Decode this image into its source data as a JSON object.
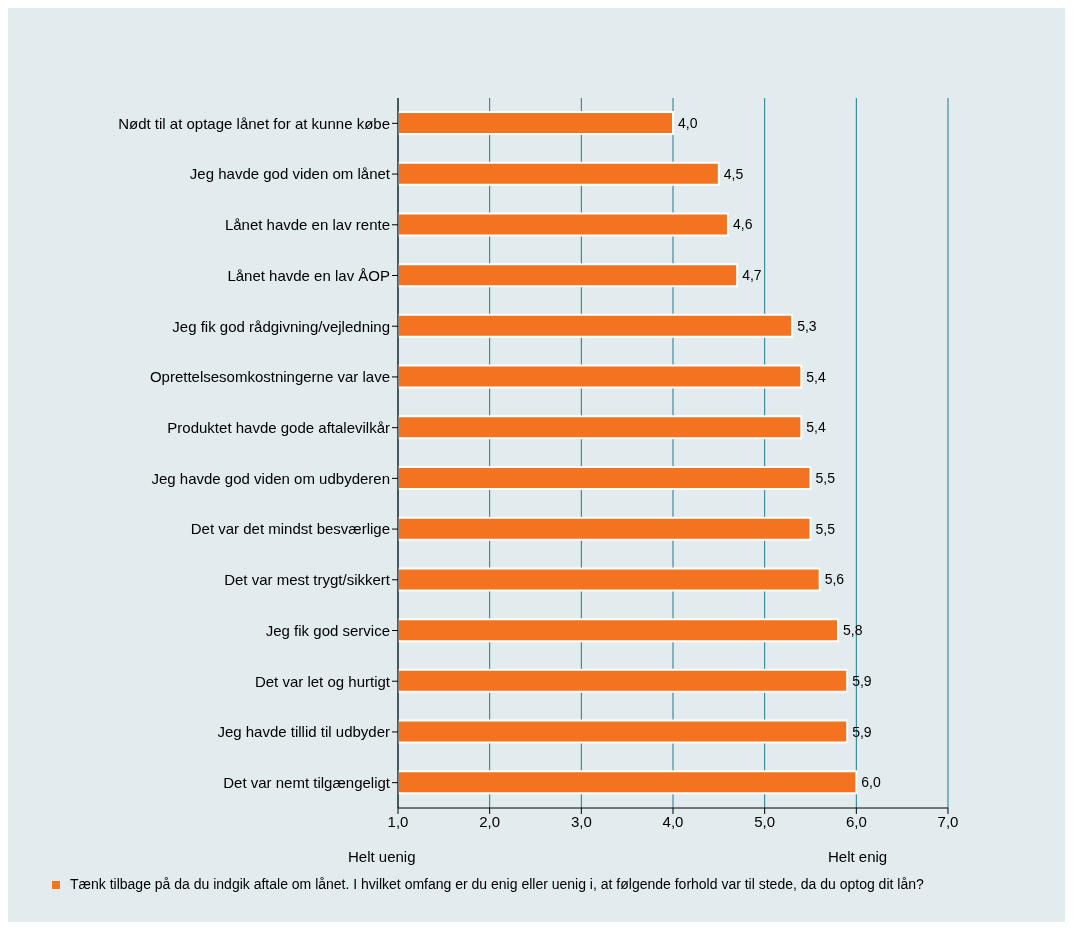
{
  "chart_data": {
    "type": "bar",
    "orientation": "horizontal",
    "categories": [
      "Nødt til at optage lånet for at kunne købe",
      "Jeg havde god viden om lånet",
      "Lånet havde en lav rente",
      "Lånet havde en lav ÅOP",
      "Jeg fik god rådgivning/vejledning",
      "Oprettelsesomkostningerne var lave",
      "Produktet havde gode aftalevilkår",
      "Jeg havde god viden om udbyderen",
      "Det var det mindst besværlige",
      "Det var mest trygt/sikkert",
      "Jeg fik god service",
      "Det var let og hurtigt",
      "Jeg havde tillid til udbyder",
      "Det var nemt tilgængeligt"
    ],
    "series": [
      {
        "name": "Tænk tilbage på da du indgik aftale om lånet. I hvilket omfang er du enig eller uenig i, at følgende forhold var til stede, da du optog dit lån?",
        "color": "#f37321",
        "values": [
          4.0,
          4.5,
          4.6,
          4.7,
          5.3,
          5.4,
          5.4,
          5.5,
          5.5,
          5.6,
          5.8,
          5.9,
          5.9,
          6.0
        ],
        "value_labels": [
          "4,0",
          "4,5",
          "4,6",
          "4,7",
          "5,3",
          "5,4",
          "5,4",
          "5,5",
          "5,5",
          "5,6",
          "5,8",
          "5,9",
          "5,9",
          "6,0"
        ]
      }
    ],
    "xlim": [
      1,
      7
    ],
    "xticks": [
      {
        "value": 1,
        "label": "1,0"
      },
      {
        "value": 2,
        "label": "2,0"
      },
      {
        "value": 3,
        "label": "3,0"
      },
      {
        "value": 4,
        "label": "4,0"
      },
      {
        "value": 5,
        "label": "5,0"
      },
      {
        "value": 6,
        "label": "6,0"
      },
      {
        "value": 7,
        "label": "7,0"
      }
    ],
    "grid": "x",
    "legend": "bottom",
    "annotations": [
      "Helt uenig",
      "Helt enig"
    ]
  }
}
